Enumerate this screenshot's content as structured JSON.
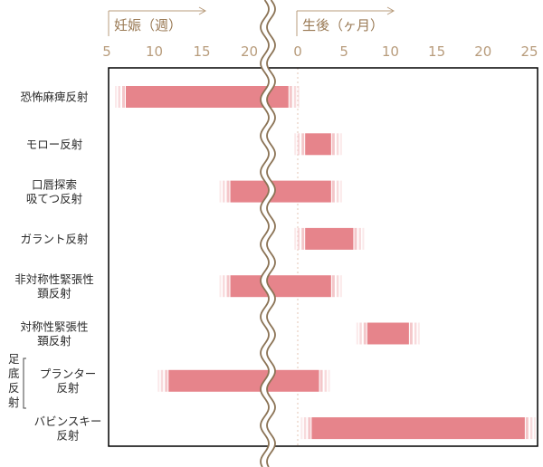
{
  "chart_data": {
    "type": "bar",
    "title": "",
    "axes": {
      "pregnancy": {
        "label": "妊娠（週）",
        "ticks": [
          "5",
          "10",
          "15",
          "20"
        ],
        "range": [
          5,
          22.5
        ]
      },
      "postnatal": {
        "label": "生後（ヶ月）",
        "ticks": [
          "0",
          "5",
          "10",
          "15",
          "20",
          "25"
        ],
        "range": [
          -0.5,
          25
        ]
      }
    },
    "group_label": "足底反射",
    "rows": [
      {
        "label": "恐怖麻痺反射",
        "start": {
          "axis": "pregnancy",
          "value": 7
        },
        "end": {
          "axis": "postnatal",
          "value": -1
        }
      },
      {
        "label": "モロー反射",
        "start": {
          "axis": "postnatal",
          "value": 0.8
        },
        "end": {
          "axis": "postnatal",
          "value": 3.6
        }
      },
      {
        "label": "口唇探索\n吸てつ反射",
        "start": {
          "axis": "pregnancy",
          "value": 18
        },
        "end": {
          "axis": "postnatal",
          "value": 3.6
        }
      },
      {
        "label": "ガラント反射",
        "start": {
          "axis": "postnatal",
          "value": 0.8
        },
        "end": {
          "axis": "postnatal",
          "value": 6
        }
      },
      {
        "label": "非対称性緊張性\n頚反射",
        "start": {
          "axis": "pregnancy",
          "value": 18
        },
        "end": {
          "axis": "postnatal",
          "value": 3.6
        }
      },
      {
        "label": "対称性緊張性\n頚反射",
        "start": {
          "axis": "postnatal",
          "value": 7.5
        },
        "end": {
          "axis": "postnatal",
          "value": 12
        }
      },
      {
        "label": "プランター\n反射",
        "start": {
          "axis": "pregnancy",
          "value": 11.5
        },
        "end": {
          "axis": "postnatal",
          "value": 2.3
        }
      },
      {
        "label": "バビンスキー\n反射",
        "start": {
          "axis": "postnatal",
          "value": 1.5
        },
        "end": {
          "axis": "postnatal",
          "value": 24.5
        }
      }
    ],
    "colors": {
      "bar": "#e6848b",
      "fade": "#f3c1c4",
      "break": "#8b7355",
      "axis_text": "#b89c7c",
      "header_text": "#9a7a55",
      "frame": "#000000"
    },
    "grid": false,
    "legend": "none"
  }
}
